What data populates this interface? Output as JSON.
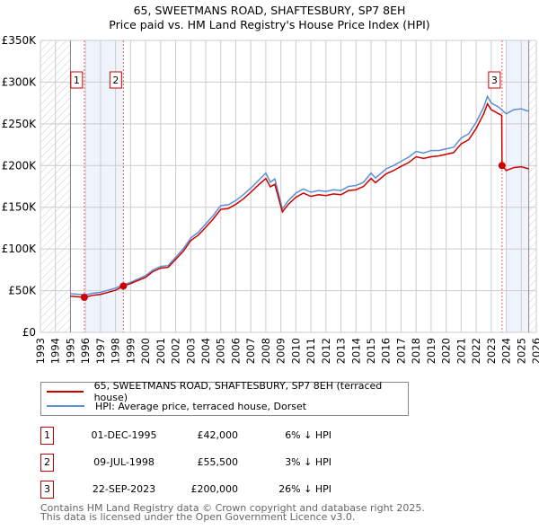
{
  "title": "65, SWEETMANS ROAD, SHAFTESBURY, SP7 8EH",
  "subtitle": "Price paid vs. HM Land Registry's House Price Index (HPI)",
  "chart_data": {
    "type": "line",
    "xlim": [
      1993,
      2026
    ],
    "ylim": [
      0,
      350000
    ],
    "yticks": [
      0,
      50000,
      100000,
      150000,
      200000,
      250000,
      300000,
      350000
    ],
    "ytick_labels": [
      "£0",
      "£50K",
      "£100K",
      "£150K",
      "£200K",
      "£250K",
      "£300K",
      "£350K"
    ],
    "xticks": [
      1993,
      1994,
      1995,
      1996,
      1997,
      1998,
      1999,
      2000,
      2001,
      2002,
      2003,
      2004,
      2005,
      2006,
      2007,
      2008,
      2009,
      2010,
      2011,
      2012,
      2013,
      2014,
      2015,
      2016,
      2017,
      2018,
      2019,
      2020,
      2021,
      2022,
      2023,
      2024,
      2025,
      2026
    ],
    "hatched_ranges": [
      [
        1993,
        1995
      ],
      [
        2025.5,
        2026
      ]
    ],
    "shaded_ranges": [
      [
        1996,
        1998.52
      ],
      [
        2024,
        2025.5
      ]
    ],
    "series": [
      {
        "name": "65, SWEETMANS ROAD, SHAFTESBURY, SP7 8EH (terraced house)",
        "color": "#cc0000",
        "x": [
          1995,
          1995.92,
          1996.5,
          1997,
          1998,
          1998.52,
          1999,
          2000,
          2000.5,
          2001,
          2001.5,
          2002,
          2002.5,
          2003,
          2003.5,
          2004,
          2004.5,
          2005,
          2005.5,
          2006,
          2006.5,
          2007,
          2007.5,
          2008,
          2008.3,
          2008.6,
          2009.1,
          2009.5,
          2010,
          2010.5,
          2011,
          2011.5,
          2012,
          2012.5,
          2013,
          2013.5,
          2014,
          2014.5,
          2015,
          2015.3,
          2016,
          2016.5,
          2017,
          2017.5,
          2018,
          2018.5,
          2019,
          2019.5,
          2020,
          2020.5,
          2021,
          2021.5,
          2022,
          2022.5,
          2022.75,
          2023,
          2023.5,
          2023.7,
          2023.72,
          2024,
          2024.5,
          2025,
          2025.5
        ],
        "y": [
          43500,
          42000,
          44500,
          45500,
          50500,
          55500,
          58500,
          66000,
          73000,
          77000,
          78000,
          87500,
          97000,
          110000,
          116500,
          126000,
          136000,
          147500,
          148500,
          153500,
          160000,
          168000,
          176500,
          184500,
          174500,
          177500,
          144500,
          153500,
          162000,
          167000,
          163000,
          165000,
          164000,
          166000,
          165000,
          170000,
          171000,
          175000,
          184500,
          179500,
          190000,
          194000,
          199000,
          203500,
          210500,
          208500,
          210500,
          211500,
          213500,
          215500,
          226000,
          231000,
          244500,
          262000,
          274000,
          267000,
          262000,
          260000,
          200000,
          194000,
          197500,
          198500,
          196000
        ]
      },
      {
        "name": "HPI: Average price, terraced house, Dorset",
        "color": "#5b8fd6",
        "x": [
          1995,
          1996,
          1996.5,
          1997,
          1998,
          1998.5,
          1999,
          2000,
          2000.5,
          2001,
          2001.5,
          2002,
          2002.5,
          2003,
          2003.5,
          2004,
          2004.5,
          2005,
          2005.5,
          2006,
          2006.5,
          2007,
          2007.5,
          2008,
          2008.3,
          2008.6,
          2009.1,
          2009.5,
          2010,
          2010.5,
          2011,
          2011.5,
          2012,
          2012.5,
          2013,
          2013.5,
          2014,
          2014.5,
          2015,
          2015.3,
          2016,
          2016.5,
          2017,
          2017.5,
          2018,
          2018.5,
          2019,
          2019.5,
          2020,
          2020.5,
          2021,
          2021.5,
          2022,
          2022.5,
          2022.75,
          2023,
          2023.5,
          2024,
          2024.5,
          2025,
          2025.5
        ],
        "y": [
          46500,
          45000,
          47000,
          48000,
          53000,
          57000,
          60000,
          68000,
          75000,
          79000,
          80000,
          90000,
          100000,
          113000,
          120000,
          130000,
          140000,
          152000,
          153000,
          158000,
          165000,
          173000,
          182000,
          191000,
          180000,
          184000,
          148000,
          158000,
          167000,
          172000,
          168000,
          170000,
          169000,
          171000,
          170000,
          175000,
          176000,
          180000,
          191000,
          185000,
          196000,
          200000,
          205000,
          210000,
          217000,
          215000,
          218000,
          218000,
          220000,
          222000,
          233000,
          238000,
          252000,
          270000,
          283000,
          275000,
          270000,
          262000,
          267000,
          268000,
          265000
        ]
      }
    ],
    "sales": [
      {
        "label": "1",
        "x": 1995.92,
        "y": 42000
      },
      {
        "label": "2",
        "x": 1998.52,
        "y": 55500
      },
      {
        "label": "3",
        "x": 2023.72,
        "y": 200000
      }
    ]
  },
  "legend": [
    {
      "label": "65, SWEETMANS ROAD, SHAFTESBURY, SP7 8EH (terraced house)",
      "color": "#cc0000"
    },
    {
      "label": "HPI: Average price, terraced house, Dorset",
      "color": "#5b8fd6"
    }
  ],
  "transactions": [
    {
      "num": "1",
      "date": "01-DEC-1995",
      "price": "£42,000",
      "hpi": "6% ↓ HPI"
    },
    {
      "num": "2",
      "date": "09-JUL-1998",
      "price": "£55,500",
      "hpi": "3% ↓ HPI"
    },
    {
      "num": "3",
      "date": "22-SEP-2023",
      "price": "£200,000",
      "hpi": "26% ↓ HPI"
    }
  ],
  "footer": [
    "Contains HM Land Registry data © Crown copyright and database right 2025.",
    "This data is licensed under the Open Government Licence v3.0."
  ]
}
